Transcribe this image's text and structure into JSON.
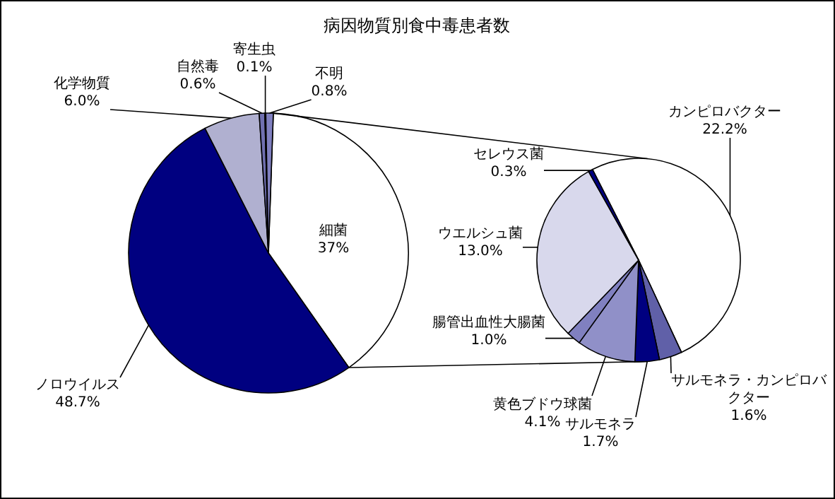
{
  "chart_data": [
    {
      "type": "pie",
      "title": "病因物質別食中毒患者数",
      "categories": [
        "細菌",
        "ノロウイルス",
        "化学物質",
        "自然毒",
        "寄生虫",
        "不明"
      ],
      "values": [
        37,
        48.7,
        6.0,
        0.6,
        0.1,
        0.8
      ],
      "colors": [
        "#ffffff",
        "#000080",
        "#b0b0d0",
        "#7070b0",
        "#000080",
        "#8080c0"
      ],
      "value_labels": [
        "37%",
        "48.7%",
        "6.0%",
        "0.6%",
        "0.1%",
        "0.8%"
      ]
    },
    {
      "type": "pie",
      "categories": [
        "カンピロバクター",
        "サルモネラ・カンピロバクター",
        "サルモネラ",
        "黄色ブドウ球菌",
        "腸管出血性大腸菌",
        "ウエルシュ菌",
        "セレウス菌"
      ],
      "values": [
        22.2,
        1.6,
        1.7,
        4.1,
        1.0,
        13.0,
        0.3
      ],
      "colors": [
        "#ffffff",
        "#6060a8",
        "#000080",
        "#9090c8",
        "#8080c0",
        "#d8d8ec",
        "#000080"
      ],
      "value_labels": [
        "22.2%",
        "1.6%",
        "1.7%",
        "4.1%",
        "1.0%",
        "13.0%",
        "0.3%"
      ]
    }
  ]
}
